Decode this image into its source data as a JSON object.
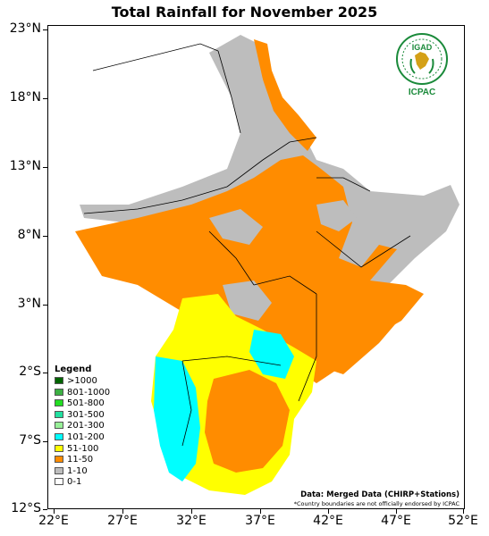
{
  "title": "Total Rainfall for November 2025",
  "axes": {
    "y_labels": [
      "23°N",
      "18°N",
      "13°N",
      "8°N",
      "3°N",
      "2°S",
      "7°S",
      "12°S"
    ],
    "x_labels": [
      "22°E",
      "27°E",
      "32°E",
      "37°E",
      "42°E",
      "47°E",
      "52°E"
    ]
  },
  "legend": {
    "title": "Legend",
    "items": [
      {
        "label": ">1000",
        "color": "#006400"
      },
      {
        "label": "801-1000",
        "color": "#3cb043"
      },
      {
        "label": "501-800",
        "color": "#22dd22"
      },
      {
        "label": "301-500",
        "color": "#22e0a0"
      },
      {
        "label": "201-300",
        "color": "#98f098"
      },
      {
        "label": "101-200",
        "color": "#00ffff"
      },
      {
        "label": "51-100",
        "color": "#ffff00"
      },
      {
        "label": "11-50",
        "color": "#ff8c00"
      },
      {
        "label": "1-10",
        "color": "#bdbdbd"
      },
      {
        "label": "0-1",
        "color": "#ffffff"
      }
    ]
  },
  "logo": {
    "top_text": "IGAD",
    "bottom_text": "ICPAC",
    "color": "#1a8a3a"
  },
  "source": "Data: Merged Data (CHIRP+Stations)",
  "disclaimer": "*Country boundaries are not officially endorsed by ICPAC",
  "colors": {
    "white": "#ffffff",
    "gray": "#bdbdbd",
    "orange": "#ff8c00",
    "yellow": "#ffff00",
    "cyan": "#00ffff",
    "border": "#000000"
  }
}
